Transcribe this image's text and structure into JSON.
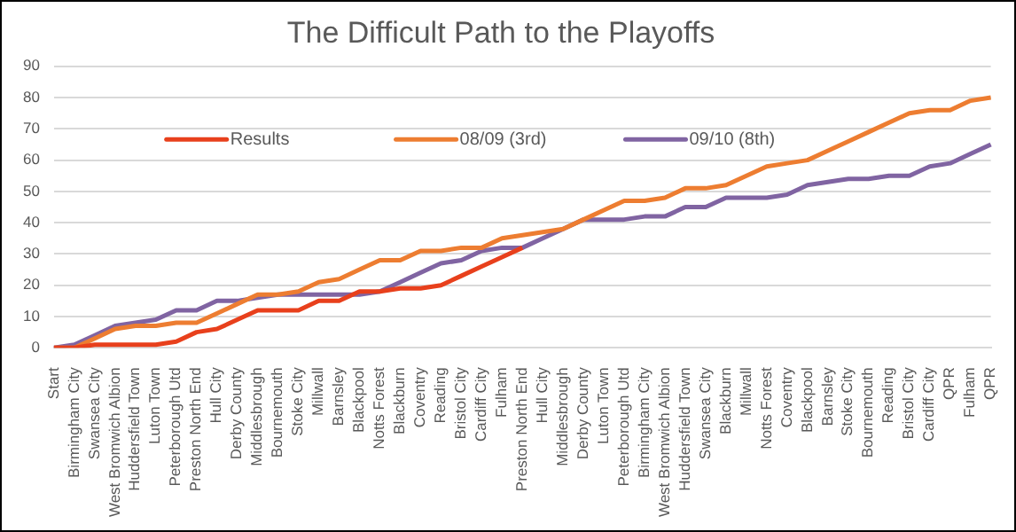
{
  "chart_data": {
    "type": "line",
    "title": "The Difficult Path to the Playoffs",
    "categories": [
      "Start",
      "Birmingham City",
      "Swansea City",
      "West Bromwich Albion",
      "Huddersfield Town",
      "Luton Town",
      "Peterborough Utd",
      "Preston North End",
      "Hull City",
      "Derby County",
      "Middlesbrough",
      "Bournemouth",
      "Stoke City",
      "Millwall",
      "Barnsley",
      "Blackpool",
      "Notts Forest",
      "Blackburn",
      "Coventry",
      "Reading",
      "Bristol City",
      "Cardiff City",
      "Fulham",
      "Preston North End",
      "Hull City",
      "Middlesbrough",
      "Derby County",
      "Luton Town",
      "Peterborough Utd",
      "Birmingham City",
      "West Bromwich Albion",
      "Huddersfield Town",
      "Swansea City",
      "Blackburn",
      "Millwall",
      "Notts Forest",
      "Coventry",
      "Blackpool",
      "Barnsley",
      "Stoke City",
      "Bournemouth",
      "Reading",
      "Bristol City",
      "Cardiff City",
      "QPR",
      "Fulham",
      "QPR"
    ],
    "series": [
      {
        "name": "Results",
        "color": "#e8401c",
        "values": [
          0,
          0,
          1,
          1,
          1,
          1,
          2,
          5,
          6,
          9,
          12,
          12,
          12,
          15,
          15,
          18,
          18,
          19,
          19,
          20,
          23,
          26,
          29,
          32,
          null,
          null,
          null,
          null,
          null,
          null,
          null,
          null,
          null,
          null,
          null,
          null,
          null,
          null,
          null,
          null,
          null,
          null,
          null,
          null,
          null,
          null,
          null
        ]
      },
      {
        "name": "08/09 (3rd)",
        "color": "#ed7d31",
        "values": [
          0,
          0,
          3,
          6,
          7,
          7,
          8,
          8,
          11,
          14,
          17,
          17,
          18,
          21,
          22,
          25,
          28,
          28,
          31,
          31,
          32,
          32,
          35,
          36,
          37,
          38,
          41,
          44,
          47,
          47,
          48,
          51,
          51,
          52,
          55,
          58,
          59,
          60,
          63,
          66,
          69,
          72,
          75,
          76,
          76,
          79,
          80
        ]
      },
      {
        "name": "09/10 (8th)",
        "color": "#8064a2",
        "values": [
          0,
          1,
          4,
          7,
          8,
          9,
          12,
          12,
          15,
          15,
          16,
          17,
          17,
          17,
          17,
          17,
          18,
          21,
          24,
          27,
          28,
          31,
          32,
          32,
          35,
          38,
          41,
          41,
          41,
          42,
          42,
          45,
          45,
          48,
          48,
          48,
          49,
          52,
          53,
          54,
          54,
          55,
          55,
          58,
          59,
          62,
          65
        ]
      }
    ],
    "ylim": [
      0,
      90
    ],
    "yticks": [
      0,
      10,
      20,
      30,
      40,
      50,
      60,
      70,
      80,
      90
    ],
    "grid": "y",
    "legend": "top",
    "marker": "none",
    "line_style": "solid"
  }
}
